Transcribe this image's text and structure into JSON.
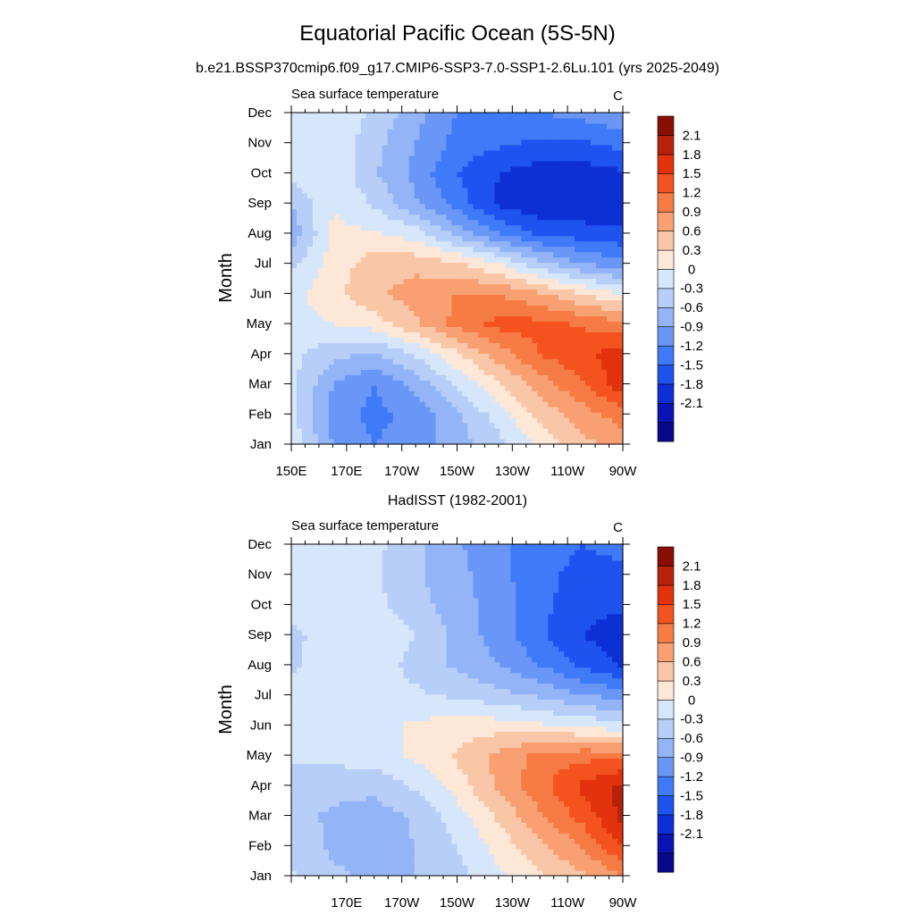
{
  "figure": {
    "title": "Equatorial Pacific Ocean (5S-5N)",
    "colors": [
      "#08088a",
      "#0a14b2",
      "#0d2fd6",
      "#1e53f0",
      "#3f7af8",
      "#6a97f7",
      "#93b4f6",
      "#b7cef8",
      "#d6e6fb",
      "#fde7d7",
      "#fac6a8",
      "#f8a072",
      "#f67b45",
      "#f4521f",
      "#e2330d",
      "#b8220a",
      "#8a0d06"
    ],
    "colorbar_labels": [
      "2.1",
      "1.8",
      "1.5",
      "1.2",
      "0.9",
      "0.6",
      "0.3",
      "0",
      "-0.3",
      "-0.6",
      "-0.9",
      "-1.2",
      "-1.5",
      "-1.8",
      "-2.1"
    ]
  },
  "chart_data": [
    {
      "type": "heatmap",
      "panel_title": "b.e21.BSSP370cmip6.f09_g17.CMIP6-SSP3-7.0-SSP1-2.6Lu.101 (yrs 2025-2049)",
      "left_label": "Sea surface temperature",
      "units": "C",
      "ylabel": "Month",
      "x_ticks": [
        "150E",
        "170E",
        "170W",
        "150W",
        "130W",
        "110W",
        "90W"
      ],
      "x_tick_values": [
        150,
        170,
        190,
        210,
        230,
        250,
        270
      ],
      "y_ticks": [
        "Jan",
        "Feb",
        "Mar",
        "Apr",
        "May",
        "Jun",
        "Jul",
        "Aug",
        "Sep",
        "Oct",
        "Nov",
        "Dec"
      ],
      "xlim": [
        150,
        270
      ],
      "contour_levels": [
        -2.1,
        -1.8,
        -1.5,
        -1.2,
        -0.9,
        -0.6,
        -0.3,
        0,
        0.3,
        0.6,
        0.9,
        1.2,
        1.5,
        1.8,
        2.1
      ],
      "x": [
        150,
        165,
        180,
        195,
        210,
        225,
        240,
        255,
        270
      ],
      "z": [
        [
          0.2,
          -0.6,
          -0.9,
          -0.75,
          -0.45,
          -0.1,
          0.4,
          0.8,
          1.0
        ],
        [
          0.1,
          -0.7,
          -1.0,
          -0.8,
          -0.35,
          0.15,
          0.7,
          1.05,
          1.35
        ],
        [
          0.1,
          -0.6,
          -0.9,
          -0.5,
          0.05,
          0.55,
          1.05,
          1.45,
          2.0
        ],
        [
          0.1,
          -0.2,
          -0.35,
          0.05,
          0.55,
          1.05,
          1.5,
          1.75,
          1.95
        ],
        [
          0.2,
          0.3,
          0.45,
          0.85,
          1.3,
          1.6,
          1.6,
          1.45,
          1.3
        ],
        [
          0.2,
          0.5,
          0.85,
          1.05,
          1.2,
          1.2,
          0.95,
          0.6,
          0.3
        ],
        [
          -0.1,
          0.45,
          0.75,
          0.8,
          0.65,
          0.3,
          -0.2,
          -0.6,
          -0.8
        ],
        [
          -0.5,
          0.35,
          0.35,
          0.15,
          -0.4,
          -0.9,
          -1.25,
          -1.35,
          -1.45
        ],
        [
          -0.3,
          0.3,
          -0.05,
          -0.55,
          -1.05,
          -1.55,
          -1.75,
          -1.75,
          -1.7
        ],
        [
          0.15,
          0.25,
          -0.25,
          -0.7,
          -1.2,
          -1.5,
          -1.65,
          -1.65,
          -1.55
        ],
        [
          0.2,
          0.25,
          -0.2,
          -0.6,
          -1.0,
          -1.15,
          -1.25,
          -1.25,
          -1.1
        ],
        [
          0.2,
          0.25,
          -0.05,
          -0.5,
          -0.9,
          -1.0,
          -0.9,
          -0.8,
          -0.6
        ]
      ]
    },
    {
      "type": "heatmap",
      "panel_title": "HadISST (1982-2001)",
      "left_label": "Sea surface temperature",
      "units": "C",
      "ylabel": "Month",
      "x_ticks": [
        "170E",
        "170W",
        "150W",
        "130W",
        "110W",
        "90W"
      ],
      "x_tick_values": [
        170,
        190,
        210,
        230,
        250,
        270
      ],
      "y_ticks": [
        "Jan",
        "Feb",
        "Mar",
        "Apr",
        "May",
        "Jun",
        "Jul",
        "Aug",
        "Sep",
        "Oct",
        "Nov",
        "Dec"
      ],
      "xlim": [
        150,
        270
      ],
      "contour_levels": [
        -2.1,
        -1.8,
        -1.5,
        -1.2,
        -0.9,
        -0.6,
        -0.3,
        0,
        0.3,
        0.6,
        0.9,
        1.2,
        1.5,
        1.8,
        2.1
      ],
      "x": [
        150,
        165,
        180,
        195,
        210,
        225,
        240,
        255,
        270
      ],
      "z": [
        [
          0.05,
          -0.25,
          -0.35,
          -0.3,
          -0.1,
          0.25,
          0.55,
          0.85,
          1.2
        ],
        [
          -0.1,
          -0.35,
          -0.45,
          -0.3,
          0.0,
          0.4,
          0.85,
          1.2,
          1.8
        ],
        [
          -0.2,
          -0.35,
          -0.45,
          -0.25,
          0.15,
          0.65,
          1.15,
          1.6,
          2.2
        ],
        [
          -0.15,
          -0.2,
          -0.2,
          0.05,
          0.45,
          0.95,
          1.4,
          1.85,
          2.2
        ],
        [
          0.05,
          0.1,
          0.15,
          0.35,
          0.65,
          1.0,
          1.3,
          1.4,
          1.4
        ],
        [
          0.1,
          0.2,
          0.2,
          0.35,
          0.45,
          0.45,
          0.35,
          0.25,
          0.1
        ],
        [
          0.1,
          0.15,
          0.1,
          0.05,
          -0.05,
          -0.2,
          -0.35,
          -0.6,
          -0.7
        ],
        [
          -0.05,
          0.15,
          0.15,
          -0.1,
          -0.35,
          -0.6,
          -0.9,
          -1.25,
          -1.55
        ],
        [
          -0.1,
          0.2,
          0.3,
          0.0,
          -0.4,
          -0.75,
          -1.15,
          -1.5,
          -1.65
        ],
        [
          0.15,
          0.2,
          0.1,
          -0.2,
          -0.45,
          -0.75,
          -1.1,
          -1.4,
          -1.45
        ],
        [
          0.15,
          0.2,
          0.05,
          -0.25,
          -0.5,
          -0.8,
          -1.1,
          -1.3,
          -1.3
        ],
        [
          0.15,
          0.15,
          0.1,
          -0.25,
          -0.55,
          -0.85,
          -1.05,
          -1.2,
          -1.1
        ]
      ]
    }
  ]
}
